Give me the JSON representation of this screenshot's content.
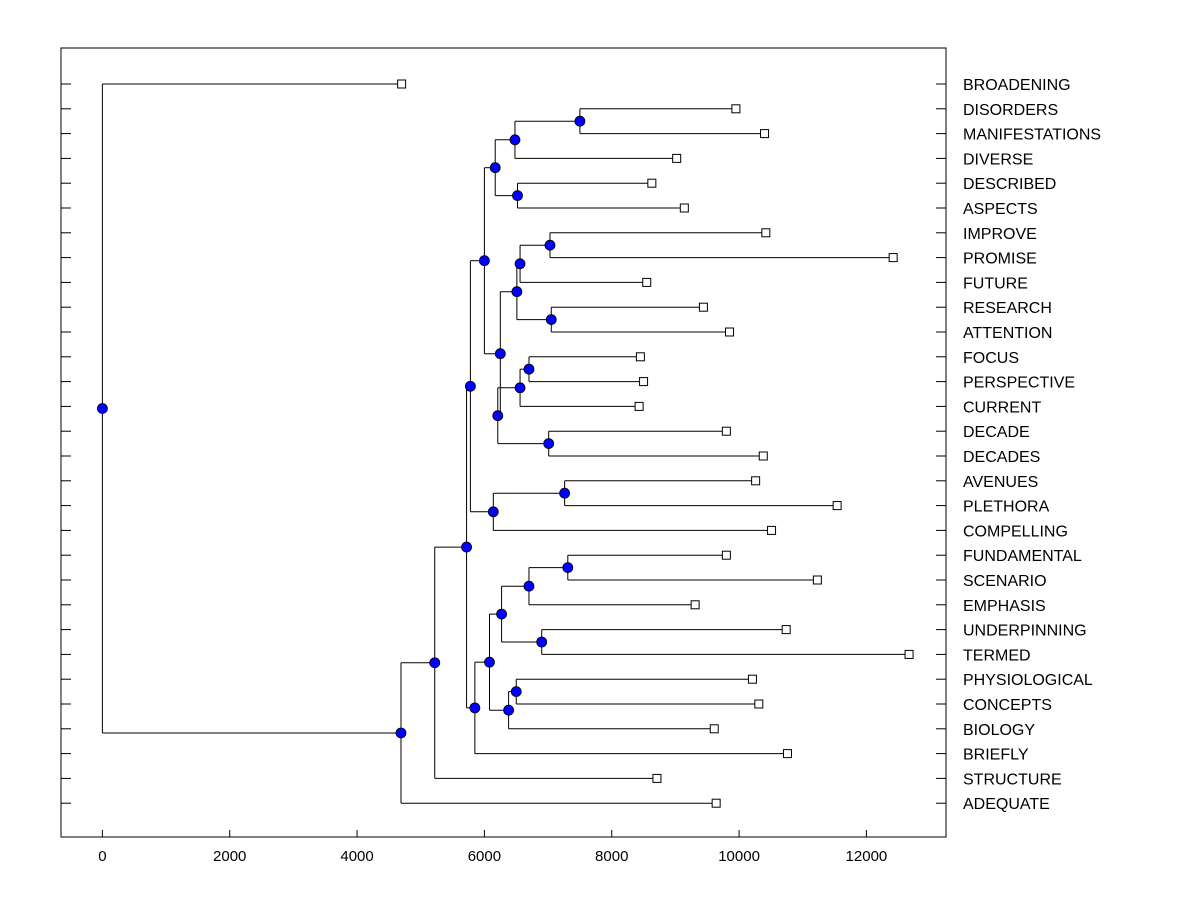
{
  "chart_data": {
    "type": "dendrogram",
    "orientation": "horizontal",
    "x_ticks": [
      0,
      2000,
      4000,
      6000,
      8000,
      10000,
      12000
    ],
    "xlim": [
      -650,
      13250
    ],
    "node_color": "#0000ff",
    "leaves": [
      {
        "label": "BROADENING",
        "x": 4700
      },
      {
        "label": "DISORDERS",
        "x": 9950
      },
      {
        "label": "MANIFESTATIONS",
        "x": 10400
      },
      {
        "label": "DIVERSE",
        "x": 9020
      },
      {
        "label": "DESCRIBED",
        "x": 8630
      },
      {
        "label": "ASPECTS",
        "x": 9140
      },
      {
        "label": "IMPROVE",
        "x": 10420
      },
      {
        "label": "PROMISE",
        "x": 12420
      },
      {
        "label": "FUTURE",
        "x": 8550
      },
      {
        "label": "RESEARCH",
        "x": 9440
      },
      {
        "label": "ATTENTION",
        "x": 9850
      },
      {
        "label": "FOCUS",
        "x": 8450
      },
      {
        "label": "PERSPECTIVE",
        "x": 8500
      },
      {
        "label": "CURRENT",
        "x": 8430
      },
      {
        "label": "DECADE",
        "x": 9800
      },
      {
        "label": "DECADES",
        "x": 10380
      },
      {
        "label": "AVENUES",
        "x": 10260
      },
      {
        "label": "PLETHORA",
        "x": 11540
      },
      {
        "label": "COMPELLING",
        "x": 10510
      },
      {
        "label": "FUNDAMENTAL",
        "x": 9800
      },
      {
        "label": "SCENARIO",
        "x": 11230
      },
      {
        "label": "EMPHASIS",
        "x": 9310
      },
      {
        "label": "UNDERPINNING",
        "x": 10740
      },
      {
        "label": "TERMED",
        "x": 12670
      },
      {
        "label": "PHYSIOLOGICAL",
        "x": 10210
      },
      {
        "label": "CONCEPTS",
        "x": 10310
      },
      {
        "label": "BIOLOGY",
        "x": 9610
      },
      {
        "label": "BRIEFLY",
        "x": 10760
      },
      {
        "label": "STRUCTURE",
        "x": 8710
      },
      {
        "label": "ADEQUATE",
        "x": 9640
      }
    ],
    "merges": [
      {
        "id": "m1",
        "x": 7500,
        "children": [
          1,
          2
        ]
      },
      {
        "id": "m2",
        "x": 6480,
        "children": [
          "m1",
          3
        ]
      },
      {
        "id": "m3",
        "x": 6520,
        "children": [
          4,
          5
        ]
      },
      {
        "id": "m4",
        "x": 6170,
        "children": [
          "m2",
          "m3"
        ]
      },
      {
        "id": "m5",
        "x": 7030,
        "children": [
          6,
          7
        ]
      },
      {
        "id": "m6",
        "x": 6560,
        "children": [
          "m5",
          8
        ]
      },
      {
        "id": "m7",
        "x": 7050,
        "children": [
          9,
          10
        ]
      },
      {
        "id": "m8",
        "x": 6510,
        "children": [
          "m6",
          "m7"
        ]
      },
      {
        "id": "m9",
        "x": 6700,
        "children": [
          11,
          12
        ]
      },
      {
        "id": "m10",
        "x": 6560,
        "children": [
          "m9",
          13
        ]
      },
      {
        "id": "m11",
        "x": 7010,
        "children": [
          14,
          15
        ]
      },
      {
        "id": "m12",
        "x": 6210,
        "children": [
          "m10",
          "m11"
        ]
      },
      {
        "id": "m13",
        "x": 6250,
        "children": [
          "m8",
          "m12"
        ]
      },
      {
        "id": "m14",
        "x": 6000,
        "children": [
          "m4",
          "m13"
        ]
      },
      {
        "id": "m15",
        "x": 7260,
        "children": [
          16,
          17
        ]
      },
      {
        "id": "m16",
        "x": 6140,
        "children": [
          "m15",
          18
        ]
      },
      {
        "id": "m17",
        "x": 5780,
        "children": [
          "m14",
          "m16"
        ]
      },
      {
        "id": "m18",
        "x": 7310,
        "children": [
          19,
          20
        ]
      },
      {
        "id": "m19",
        "x": 6700,
        "children": [
          "m18",
          21
        ]
      },
      {
        "id": "m20",
        "x": 6900,
        "children": [
          22,
          23
        ]
      },
      {
        "id": "m21",
        "x": 6270,
        "children": [
          "m19",
          "m20"
        ]
      },
      {
        "id": "m22",
        "x": 6500,
        "children": [
          24,
          25
        ]
      },
      {
        "id": "m23",
        "x": 6380,
        "children": [
          "m22",
          26
        ]
      },
      {
        "id": "m24",
        "x": 6080,
        "children": [
          "m21",
          "m23"
        ]
      },
      {
        "id": "m25",
        "x": 5850,
        "children": [
          "m24",
          27
        ]
      },
      {
        "id": "m26",
        "x": 5720,
        "children": [
          "m17",
          "m25"
        ]
      },
      {
        "id": "m27",
        "x": 5220,
        "children": [
          "m26",
          28
        ]
      },
      {
        "id": "m28",
        "x": 4690,
        "children": [
          "m27",
          29
        ]
      },
      {
        "id": "m29",
        "x": 0,
        "children": [
          0,
          "m28"
        ]
      }
    ]
  }
}
